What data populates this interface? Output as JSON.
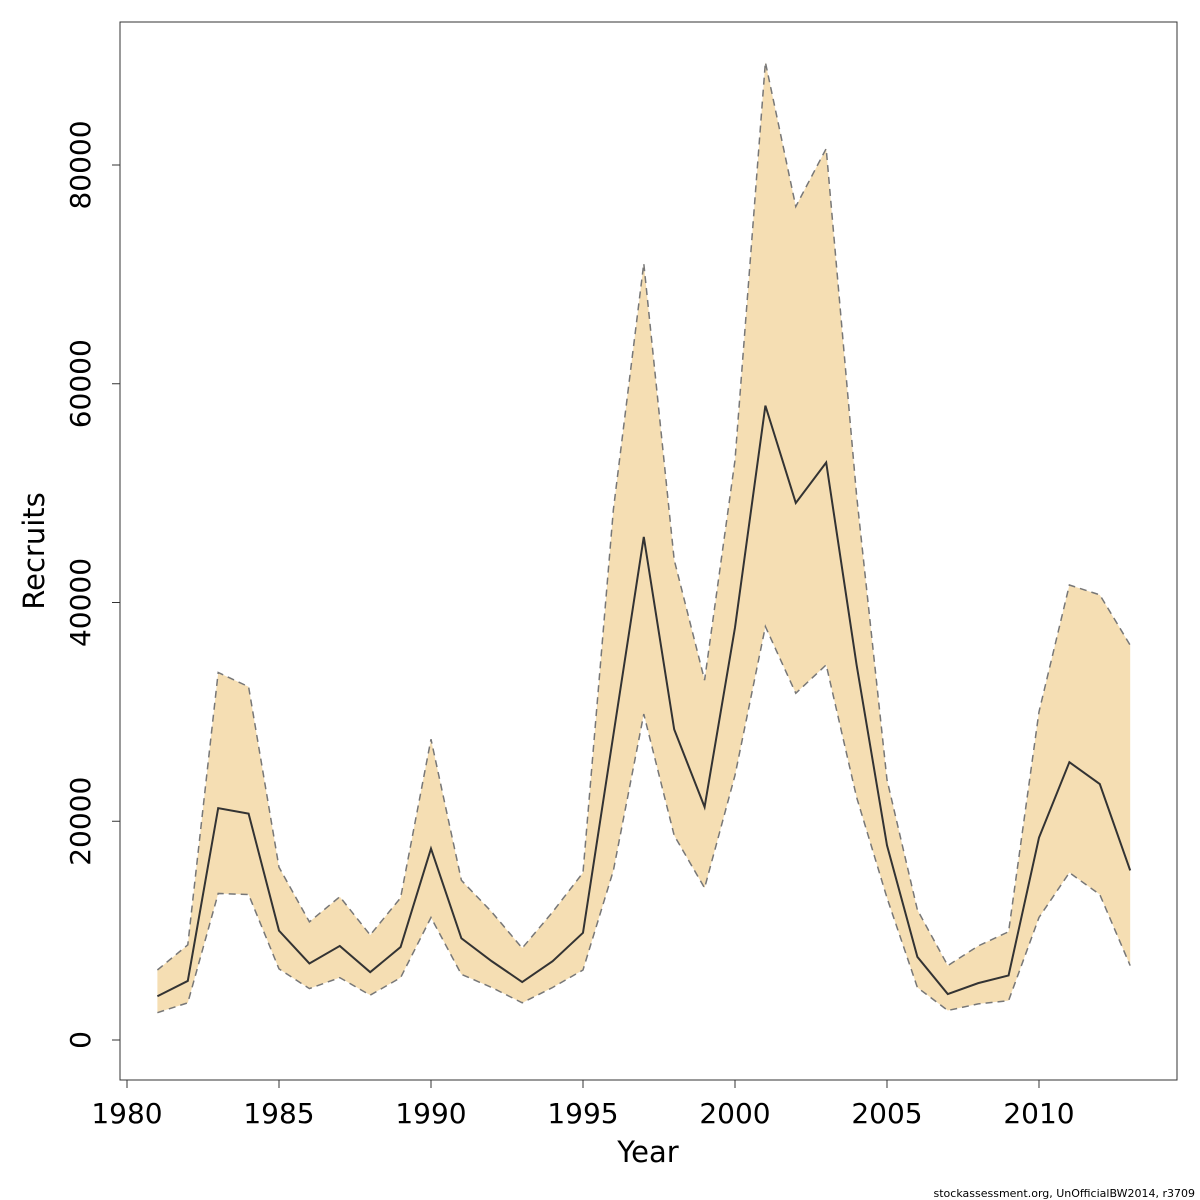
{
  "chart_data": {
    "type": "line",
    "x_label": "Year",
    "y_label": "Recruits",
    "footer": "stockassessment.org, UnOfficialBW2014, r3709",
    "x": [
      1981,
      1982,
      1983,
      1984,
      1985,
      1986,
      1987,
      1988,
      1989,
      1990,
      1991,
      1992,
      1993,
      1994,
      1995,
      1996,
      1997,
      1998,
      1999,
      2000,
      2001,
      2002,
      2003,
      2004,
      2005,
      2006,
      2007,
      2008,
      2009,
      2010,
      2011,
      2012,
      2013
    ],
    "values": [
      4000,
      5400,
      21200,
      20700,
      10000,
      7000,
      8600,
      6200,
      8500,
      17500,
      9300,
      7200,
      5300,
      7200,
      9800,
      27900,
      46000,
      28400,
      21300,
      37700,
      58000,
      49100,
      52800,
      34300,
      17800,
      7600,
      4200,
      5200,
      5900,
      18500,
      25400,
      23400,
      15500
    ],
    "upper": [
      6400,
      8700,
      33600,
      32300,
      15800,
      10800,
      13100,
      9600,
      13000,
      27500,
      14600,
      11700,
      8400,
      11700,
      15300,
      48500,
      71000,
      43900,
      32900,
      53000,
      89400,
      76200,
      81500,
      49800,
      23800,
      11900,
      6800,
      8600,
      9900,
      30000,
      41600,
      40700,
      36100
    ],
    "lower": [
      2500,
      3400,
      13400,
      13300,
      6500,
      4700,
      5700,
      4100,
      5700,
      11200,
      6000,
      4800,
      3400,
      4800,
      6400,
      15500,
      29800,
      18700,
      13900,
      24200,
      37800,
      31700,
      34300,
      22200,
      13000,
      4800,
      2700,
      3300,
      3600,
      11200,
      15300,
      13300,
      6800
    ],
    "color": "#333333",
    "band_color": "#f5deb3",
    "bound_color": "#777777",
    "xlim": [
      1979.77,
      2014.54
    ],
    "xticks": [
      1980,
      1985,
      1990,
      1995,
      2000,
      2005,
      2010
    ],
    "ylim": [
      -3657,
      93074
    ],
    "yticks": [
      0,
      20000,
      40000,
      60000,
      80000
    ]
  }
}
